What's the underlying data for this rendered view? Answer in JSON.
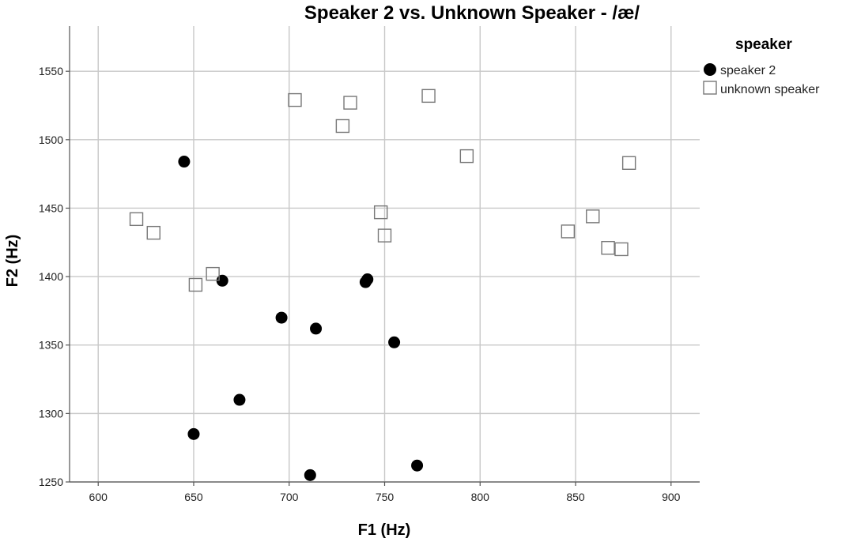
{
  "chart_data": {
    "type": "scatter",
    "title": "Speaker 2 vs. Unknown Speaker - /æ/",
    "xlabel": "F1 (Hz)",
    "ylabel": "F2 (Hz)",
    "xlim": [
      585,
      915
    ],
    "ylim": [
      1250,
      1583
    ],
    "x_ticks": [
      600,
      650,
      700,
      750,
      800,
      850,
      900
    ],
    "y_ticks": [
      1250,
      1300,
      1350,
      1400,
      1450,
      1500,
      1550
    ],
    "grid": true,
    "legend": {
      "title": "speaker",
      "placement": "right"
    },
    "series": [
      {
        "name": "speaker 2",
        "marker": "filled-circle",
        "color": "#000000",
        "points": [
          [
            645,
            1484
          ],
          [
            665,
            1397
          ],
          [
            696,
            1370
          ],
          [
            714,
            1362
          ],
          [
            740,
            1396
          ],
          [
            741,
            1398
          ],
          [
            755,
            1352
          ],
          [
            674,
            1310
          ],
          [
            650,
            1285
          ],
          [
            711,
            1255
          ],
          [
            767,
            1262
          ]
        ]
      },
      {
        "name": "unknown speaker",
        "marker": "hollow-square",
        "color": "#777777",
        "points": [
          [
            703,
            1529
          ],
          [
            732,
            1527
          ],
          [
            728,
            1510
          ],
          [
            773,
            1532
          ],
          [
            793,
            1488
          ],
          [
            878,
            1483
          ],
          [
            620,
            1442
          ],
          [
            629,
            1432
          ],
          [
            748,
            1447
          ],
          [
            750,
            1430
          ],
          [
            660,
            1402
          ],
          [
            651,
            1394
          ],
          [
            846,
            1433
          ],
          [
            859,
            1444
          ],
          [
            867,
            1421
          ],
          [
            874,
            1420
          ]
        ]
      }
    ]
  }
}
